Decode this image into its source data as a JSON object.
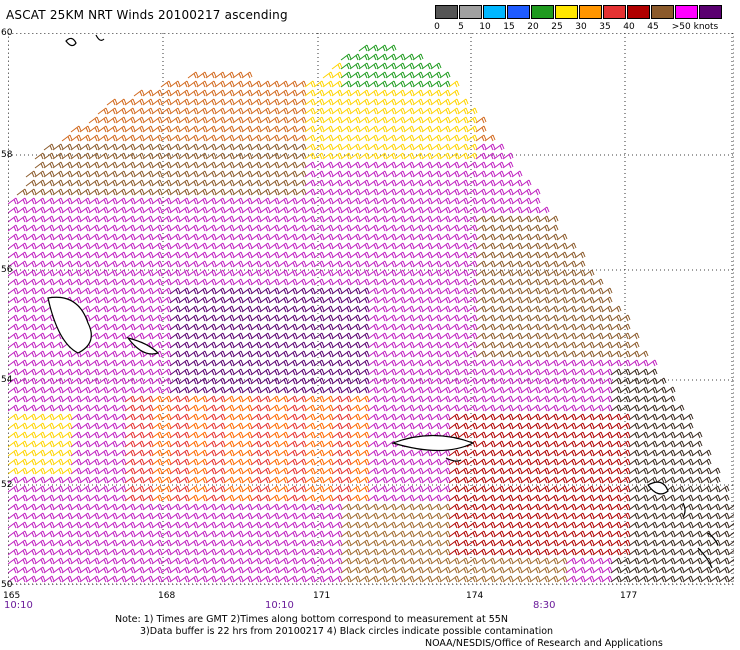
{
  "title": "ASCAT 25KM NRT Winds 20100217 ascending",
  "legend": {
    "ticks": [
      "0",
      "5",
      "10",
      "15",
      "20",
      "25",
      "30",
      "35",
      "40",
      "45",
      ">50 knots"
    ],
    "colors": [
      "#555555",
      "#a0a0a0",
      "#00b7ff",
      "#1e5bff",
      "#1f9b1f",
      "#ffe600",
      "#ff9500",
      "#e53232",
      "#b00000",
      "#8b5a2b",
      "#ff00ff",
      "#5a0070"
    ]
  },
  "map": {
    "lat_labels": [
      "60",
      "58",
      "56",
      "54",
      "52",
      "50"
    ],
    "lon_labels": [
      "165",
      "168",
      "171",
      "174",
      "177"
    ],
    "time_labels": [
      "10:10",
      "10:10",
      "8:30"
    ]
  },
  "notes": {
    "line1": "Note: 1) Times are GMT 2)Times along bottom correspond to measurement at 55N",
    "line2": "3)Data buffer is 22 hrs from 20100217 4) Black circles indicate possible contamination",
    "line3": "NOAA/NESDIS/Office of Research and Applications"
  }
}
